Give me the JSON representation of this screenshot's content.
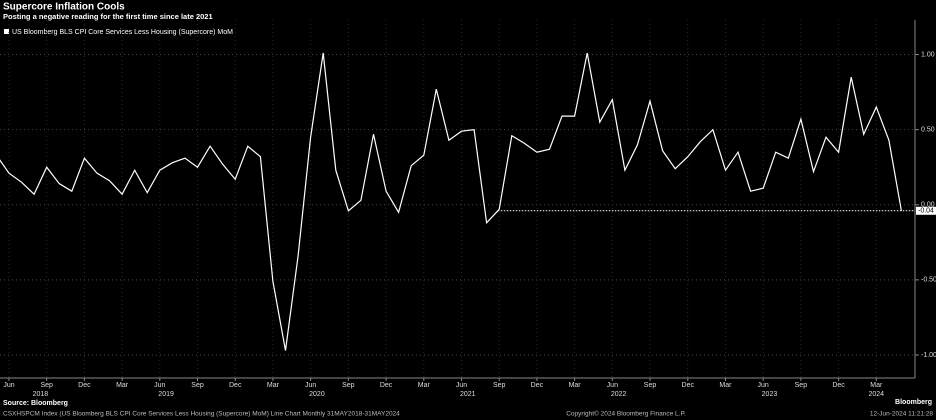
{
  "chart_data": {
    "type": "line",
    "title": "Supercore Inflation Cools",
    "subtitle": "Posting a negative reading for the first time since late 2021",
    "source": "Source: Bloomberg",
    "footer_left": "CSXHSPCM Index (US Bloomberg BLS CPI Core Services Less Housing (Supercore) MoM) Line Chart  Monthly 31MAY2018-31MAY2024",
    "footer_center": "Copyright© 2024 Bloomberg Finance L.P.",
    "footer_right": "12-Jun-2024 11:21:28",
    "logo": "Bloomberg",
    "x": [
      "2018-05",
      "2018-06",
      "2018-07",
      "2018-08",
      "2018-09",
      "2018-10",
      "2018-11",
      "2018-12",
      "2019-01",
      "2019-02",
      "2019-03",
      "2019-04",
      "2019-05",
      "2019-06",
      "2019-07",
      "2019-08",
      "2019-09",
      "2019-10",
      "2019-11",
      "2019-12",
      "2020-01",
      "2020-02",
      "2020-03",
      "2020-04",
      "2020-05",
      "2020-06",
      "2020-07",
      "2020-08",
      "2020-09",
      "2020-10",
      "2020-11",
      "2020-12",
      "2021-01",
      "2021-02",
      "2021-03",
      "2021-04",
      "2021-05",
      "2021-06",
      "2021-07",
      "2021-08",
      "2021-09",
      "2021-10",
      "2021-11",
      "2021-12",
      "2022-01",
      "2022-02",
      "2022-03",
      "2022-04",
      "2022-05",
      "2022-06",
      "2022-07",
      "2022-08",
      "2022-09",
      "2022-10",
      "2022-11",
      "2022-12",
      "2023-01",
      "2023-02",
      "2023-03",
      "2023-04",
      "2023-05",
      "2023-06",
      "2023-07",
      "2023-08",
      "2023-09",
      "2023-10",
      "2023-11",
      "2023-12",
      "2024-01",
      "2024-02",
      "2024-03",
      "2024-04",
      "2024-05"
    ],
    "series": [
      {
        "name": "US Bloomberg BLS CPI Core Services Less Housing (Supercore) MoM",
        "color": "#ffffff",
        "values": [
          0.33,
          0.21,
          0.15,
          0.07,
          0.25,
          0.14,
          0.09,
          0.31,
          0.21,
          0.16,
          0.07,
          0.23,
          0.08,
          0.23,
          0.28,
          0.31,
          0.25,
          0.39,
          0.27,
          0.17,
          0.39,
          0.32,
          -0.51,
          -0.97,
          -0.34,
          0.45,
          1.01,
          0.23,
          -0.04,
          0.03,
          0.47,
          0.09,
          -0.05,
          0.26,
          0.33,
          0.77,
          0.43,
          0.49,
          0.5,
          -0.12,
          -0.03,
          0.46,
          0.41,
          0.35,
          0.37,
          0.59,
          0.59,
          1.01,
          0.55,
          0.7,
          0.23,
          0.4,
          0.69,
          0.36,
          0.24,
          0.32,
          0.42,
          0.5,
          0.23,
          0.35,
          0.09,
          0.11,
          0.35,
          0.31,
          0.57,
          0.22,
          0.45,
          0.35,
          0.85,
          0.47,
          0.65,
          0.43,
          -0.04
        ]
      }
    ],
    "ylim": [
      -1.1,
      1.23
    ],
    "yticks": [
      {
        "value": 1,
        "label": "1.00"
      },
      {
        "value": 0.5,
        "label": "0.50"
      },
      {
        "value": 0,
        "label": "0.00"
      },
      {
        "value": -0.5,
        "label": "-0.50"
      },
      {
        "value": -1,
        "label": "-1.00"
      }
    ],
    "xticks": [
      {
        "value": "2018-06",
        "label": "Jun"
      },
      {
        "value": "2018-09",
        "label": "Sep"
      },
      {
        "value": "2018-12",
        "label": "Dec"
      },
      {
        "value": "2019-03",
        "label": "Mar"
      },
      {
        "value": "2019-06",
        "label": "Jun"
      },
      {
        "value": "2019-09",
        "label": "Sep"
      },
      {
        "value": "2019-12",
        "label": "Dec"
      },
      {
        "value": "2020-03",
        "label": "Mar"
      },
      {
        "value": "2020-06",
        "label": "Jun"
      },
      {
        "value": "2020-09",
        "label": "Sep"
      },
      {
        "value": "2020-12",
        "label": "Dec"
      },
      {
        "value": "2021-03",
        "label": "Mar"
      },
      {
        "value": "2021-06",
        "label": "Jun"
      },
      {
        "value": "2021-09",
        "label": "Sep"
      },
      {
        "value": "2021-12",
        "label": "Dec"
      },
      {
        "value": "2022-03",
        "label": "Mar"
      },
      {
        "value": "2022-06",
        "label": "Jun"
      },
      {
        "value": "2022-09",
        "label": "Sep"
      },
      {
        "value": "2022-12",
        "label": "Dec"
      },
      {
        "value": "2023-03",
        "label": "Mar"
      },
      {
        "value": "2023-06",
        "label": "Jun"
      },
      {
        "value": "2023-09",
        "label": "Sep"
      },
      {
        "value": "2023-12",
        "label": "Dec"
      },
      {
        "value": "2024-03",
        "label": "Mar"
      }
    ],
    "year_labels": [
      "2018",
      "2019",
      "2020",
      "2021",
      "2022",
      "2023",
      "2024"
    ],
    "grid": true
  }
}
